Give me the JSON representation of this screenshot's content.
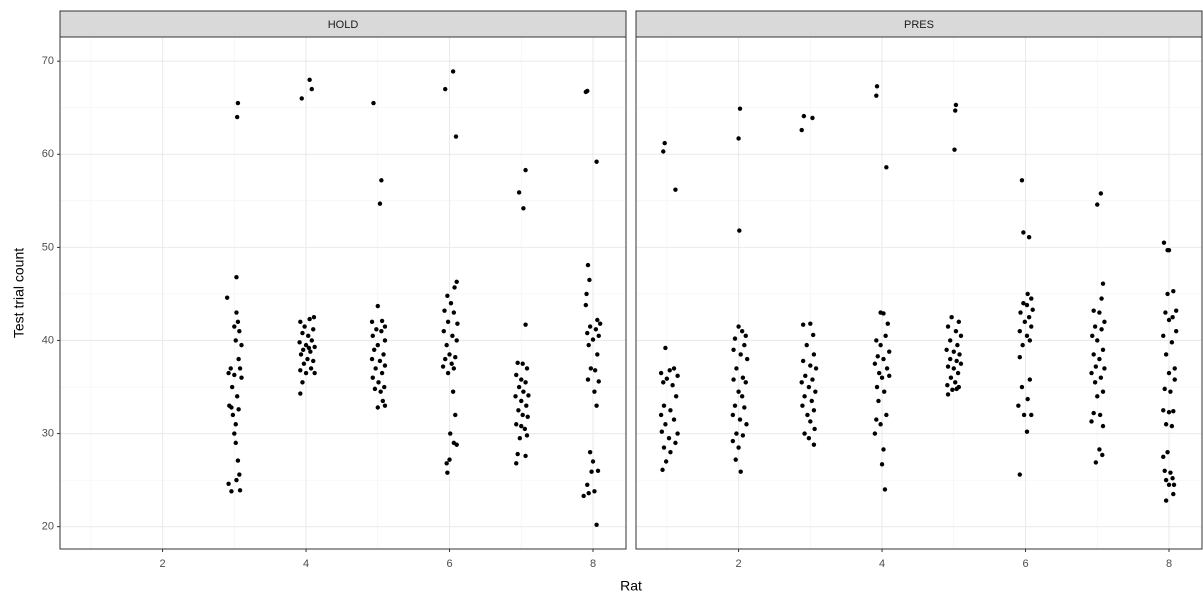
{
  "chart_data": {
    "type": "scatter",
    "xlabel": "Rat",
    "ylabel": "Test trial count",
    "xlim": [
      0.57,
      8.46
    ],
    "ylim": [
      17.6,
      72.6
    ],
    "xticks": [
      2,
      4,
      6,
      8
    ],
    "yticks": [
      20,
      30,
      40,
      50,
      60,
      70
    ],
    "grid": true,
    "color": "#000000",
    "panels": [
      {
        "title": "HOLD",
        "x": [
          3.05,
          3.04,
          3.03,
          2.9,
          3.03,
          3.05,
          3.0,
          3.07,
          3.02,
          3.1,
          3.06,
          2.95,
          3.08,
          2.92,
          3.0,
          3.1,
          2.97,
          3.04,
          2.93,
          2.96,
          3.06,
          2.98,
          3.02,
          3.0,
          3.02,
          3.05,
          3.07,
          2.92,
          3.03,
          2.96,
          3.08,
          4.05,
          3.94,
          4.08,
          3.92,
          4.05,
          4.11,
          3.98,
          4.1,
          3.95,
          4.03,
          4.08,
          3.91,
          4.0,
          4.12,
          3.96,
          4.06,
          3.93,
          4.02,
          4.1,
          3.97,
          4.07,
          3.92,
          4.0,
          4.12,
          3.95,
          3.92,
          4.04,
          4.94,
          5.05,
          5.03,
          5.0,
          4.92,
          5.06,
          5.1,
          4.98,
          5.05,
          4.93,
          5.1,
          5.0,
          4.95,
          5.08,
          4.92,
          5.03,
          5.1,
          4.97,
          5.06,
          4.93,
          5.01,
          5.09,
          4.96,
          5.04,
          5.07,
          5.1,
          5.0,
          5.94,
          6.05,
          6.09,
          6.1,
          6.07,
          5.97,
          6.02,
          5.93,
          6.06,
          5.98,
          6.11,
          5.92,
          6.04,
          6.1,
          5.96,
          6.0,
          6.08,
          5.94,
          6.03,
          5.91,
          6.06,
          5.98,
          6.05,
          6.08,
          6.01,
          6.06,
          6.1,
          5.96,
          6.0,
          5.97,
          6.97,
          7.03,
          7.06,
          7.06,
          6.95,
          7.02,
          7.08,
          6.93,
          7.0,
          7.06,
          6.97,
          7.03,
          7.1,
          6.92,
          7.0,
          7.07,
          6.96,
          7.02,
          7.09,
          6.93,
          7.0,
          7.05,
          7.08,
          6.98,
          6.95,
          7.06,
          6.93,
          7.9,
          7.92,
          8.05,
          7.93,
          7.95,
          7.91,
          7.9,
          8.06,
          8.1,
          7.96,
          8.04,
          7.92,
          8.08,
          8.0,
          7.94,
          8.06,
          7.97,
          8.03,
          8.08,
          7.93,
          8.02,
          8.05,
          7.96,
          8.0,
          8.07,
          7.98,
          7.92,
          8.02,
          7.94,
          7.87,
          8.05
        ],
        "values": [
          65.5,
          64,
          46.8,
          44.6,
          43,
          42,
          41.5,
          41,
          40,
          39.5,
          38,
          37,
          37,
          36.5,
          36.3,
          36,
          35,
          34,
          33,
          32.8,
          32.6,
          32,
          31,
          30,
          29,
          27.1,
          25.6,
          24.6,
          25,
          23.8,
          23.9,
          68,
          66,
          67,
          42,
          42.3,
          42.5,
          41.5,
          41.2,
          40.8,
          40.5,
          40,
          39.8,
          39.5,
          39.3,
          39,
          38.8,
          38.5,
          38,
          37.8,
          37.5,
          37,
          36.8,
          36.5,
          36.5,
          35.5,
          34.3,
          39.2,
          65.5,
          57.2,
          54.7,
          43.7,
          42,
          42.1,
          41.5,
          41.2,
          41,
          40.5,
          40,
          39.5,
          39,
          38.5,
          38,
          37.8,
          37.3,
          37,
          36.5,
          36,
          35.5,
          35,
          34.8,
          34.5,
          33.5,
          33,
          32.8,
          67,
          68.9,
          61.9,
          46.3,
          45.7,
          44.8,
          44,
          43.2,
          43,
          42,
          41.8,
          41,
          40.5,
          40,
          39.5,
          38.5,
          38.2,
          38,
          37.5,
          37.2,
          37,
          36.5,
          34.5,
          32,
          30,
          29,
          28.8,
          26.8,
          27.2,
          25.8,
          55.9,
          54.2,
          58.3,
          41.7,
          37.6,
          37.5,
          37,
          36.3,
          35.8,
          35.5,
          35,
          34.5,
          34.1,
          34,
          33.5,
          33,
          32.5,
          32,
          31.8,
          31,
          30.8,
          30.5,
          29.8,
          29.5,
          27.8,
          27.6,
          26.8,
          66.7,
          66.8,
          59.2,
          48.1,
          46.5,
          45,
          43.8,
          42.2,
          41.8,
          41.5,
          41.2,
          40.8,
          40.5,
          40.1,
          39.5,
          38.5,
          37,
          36.8,
          35.6,
          35.8,
          34.5,
          33,
          28,
          27,
          26,
          25.9,
          24.5,
          23.8,
          23.6,
          23.3,
          20.2
        ]
      },
      {
        "title": "PRES",
        "x": [
          0.97,
          0.95,
          1.12,
          0.98,
          1.1,
          1.04,
          0.92,
          1.15,
          1.0,
          0.95,
          1.08,
          1.13,
          0.96,
          1.05,
          0.92,
          1.1,
          0.98,
          1.15,
          0.93,
          1.03,
          1.12,
          0.96,
          1.05,
          0.99,
          0.94,
          2.02,
          2.0,
          2.01,
          2.0,
          2.05,
          2.1,
          1.95,
          2.08,
          1.93,
          2.03,
          2.12,
          1.97,
          2.06,
          1.93,
          2.1,
          2.0,
          2.05,
          1.95,
          2.08,
          1.92,
          2.02,
          2.11,
          1.97,
          2.06,
          1.92,
          2.0,
          1.96,
          2.03,
          2.91,
          3.03,
          2.88,
          2.9,
          3.0,
          3.04,
          2.95,
          3.05,
          2.9,
          3.0,
          3.08,
          2.93,
          3.03,
          2.88,
          2.98,
          3.07,
          2.92,
          3.02,
          2.89,
          3.05,
          2.96,
          3.0,
          3.06,
          2.92,
          2.98,
          3.05,
          3.93,
          3.92,
          4.06,
          3.98,
          4.02,
          4.08,
          3.92,
          4.05,
          3.98,
          4.1,
          3.94,
          4.02,
          3.9,
          4.07,
          3.96,
          4.1,
          4.0,
          3.93,
          4.03,
          3.95,
          4.06,
          3.92,
          3.98,
          3.9,
          4.02,
          4.0,
          4.04,
          5.03,
          5.02,
          5.01,
          4.97,
          5.07,
          4.92,
          5.03,
          5.1,
          4.95,
          5.05,
          4.9,
          5.0,
          5.08,
          4.95,
          5.04,
          5.1,
          4.92,
          5.0,
          5.06,
          4.96,
          5.02,
          4.91,
          5.07,
          4.98,
          4.92,
          5.04,
          5.95,
          5.97,
          6.05,
          6.03,
          6.08,
          5.97,
          6.02,
          6.1,
          5.93,
          6.05,
          5.99,
          6.08,
          5.92,
          6.02,
          6.06,
          5.96,
          5.92,
          6.06,
          5.95,
          6.03,
          5.9,
          6.08,
          5.98,
          6.02,
          5.92,
          7.05,
          7.0,
          7.08,
          7.06,
          6.95,
          7.03,
          7.1,
          6.97,
          7.06,
          6.93,
          7.0,
          7.08,
          6.95,
          7.03,
          6.98,
          7.1,
          6.92,
          7.05,
          6.97,
          7.08,
          7.0,
          6.95,
          7.04,
          6.92,
          7.08,
          7.03,
          7.07,
          6.98,
          7.93,
          7.98,
          8.0,
          8.06,
          7.98,
          8.1,
          7.95,
          8.05,
          8.0,
          8.1,
          7.92,
          8.04,
          7.96,
          8.08,
          8.0,
          8.08,
          7.94,
          8.02,
          7.92,
          8.0,
          8.06,
          7.96,
          8.04,
          7.98,
          7.92,
          7.94,
          8.02,
          7.96,
          8.05,
          8.0,
          8.07,
          8.06,
          7.96
        ],
        "values": [
          61.2,
          60.3,
          56.2,
          39.2,
          37,
          36.8,
          36.5,
          36.2,
          35.9,
          35.5,
          35.2,
          34,
          33,
          32.5,
          32,
          31.5,
          31,
          30,
          30.2,
          29.5,
          29,
          28.5,
          28,
          27,
          26.1,
          64.9,
          61.7,
          51.8,
          41.5,
          41,
          40.5,
          40.2,
          39.5,
          39,
          38.5,
          38,
          37,
          36,
          35.8,
          35.5,
          34.5,
          34,
          33,
          32.8,
          32,
          31.5,
          31,
          30,
          29.8,
          29.2,
          28.5,
          27.2,
          25.9,
          64.1,
          63.9,
          62.6,
          41.7,
          41.8,
          40.6,
          39.5,
          38.5,
          37.8,
          37.3,
          37,
          36.2,
          35.8,
          35.5,
          35,
          34.5,
          34,
          33.5,
          33,
          32.5,
          32,
          31.3,
          30.5,
          30,
          29.5,
          28.8,
          67.3,
          66.3,
          58.6,
          43,
          42.9,
          41.8,
          40,
          40.5,
          39.5,
          38.8,
          38.3,
          38,
          37.5,
          37,
          36.5,
          36.2,
          36,
          35,
          34.5,
          33.5,
          32,
          31.5,
          31,
          30,
          28.3,
          26.7,
          24,
          65.3,
          64.7,
          60.5,
          42.5,
          42,
          41.5,
          41,
          40.5,
          40,
          39.5,
          39,
          38.8,
          38.5,
          38,
          37.8,
          37.5,
          37.2,
          37,
          36.5,
          36,
          35.5,
          35.2,
          35,
          34.7,
          34.2,
          34.8,
          57.2,
          51.6,
          51.1,
          45,
          44.5,
          44,
          43.8,
          43.3,
          43,
          42.5,
          42,
          41.5,
          41,
          40.5,
          40,
          39.5,
          38.2,
          35.8,
          35,
          33.7,
          33,
          32,
          32,
          30.2,
          25.6,
          55.8,
          54.6,
          46.1,
          44.5,
          43.2,
          43,
          42,
          41.5,
          41.2,
          40.5,
          40,
          39,
          38.5,
          38,
          37.2,
          37,
          36.5,
          36,
          35.5,
          34.5,
          34,
          32.2,
          32,
          31.3,
          30.8,
          28.3,
          27.7,
          26.9,
          50.5,
          49.7,
          49.7,
          45.3,
          45,
          43.2,
          43,
          42.5,
          42.2,
          41,
          40.5,
          39.8,
          38.5,
          37,
          36.5,
          35.8,
          34.8,
          34.5,
          32.5,
          32.3,
          32.4,
          31,
          30.8,
          28,
          27.5,
          26,
          25.8,
          25,
          25.2,
          24.5,
          24.5,
          23.5,
          22.8
        ]
      }
    ]
  }
}
